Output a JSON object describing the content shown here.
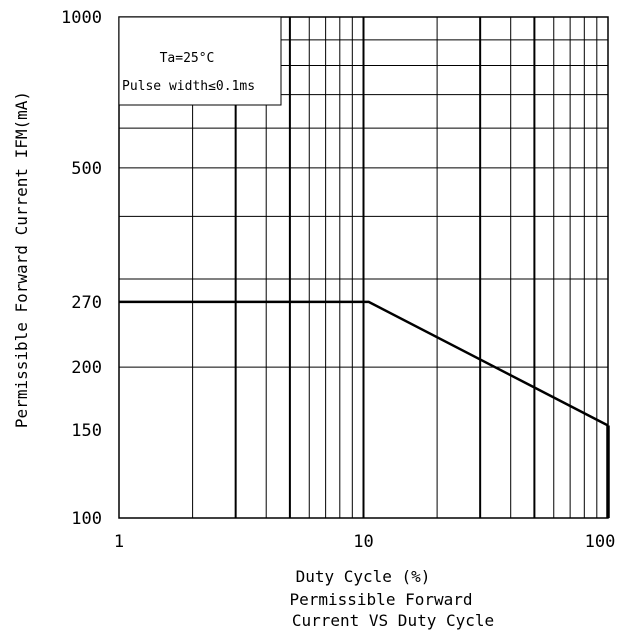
{
  "chart_data": {
    "type": "line",
    "title": "",
    "caption": [
      "Permissible Forward",
      "Current VS Duty Cycle"
    ],
    "xlabel": "Duty Cycle (%)",
    "ylabel": "Permissible Forward Current IFM(mA)",
    "x_scale": "log",
    "y_scale": "log",
    "xlim": [
      1,
      100
    ],
    "ylim": [
      100,
      1000
    ],
    "x_ticks": [
      "1",
      "10",
      "100"
    ],
    "y_ticks": [
      "1000",
      "500",
      "270",
      "200",
      "150",
      "100"
    ],
    "grid": true,
    "annotations": [
      "Ta=25°C",
      "Pulse width≤0.1ms"
    ],
    "series": [
      {
        "x": [
          1,
          10.5,
          100
        ],
        "y": [
          270,
          270,
          153
        ]
      }
    ]
  }
}
